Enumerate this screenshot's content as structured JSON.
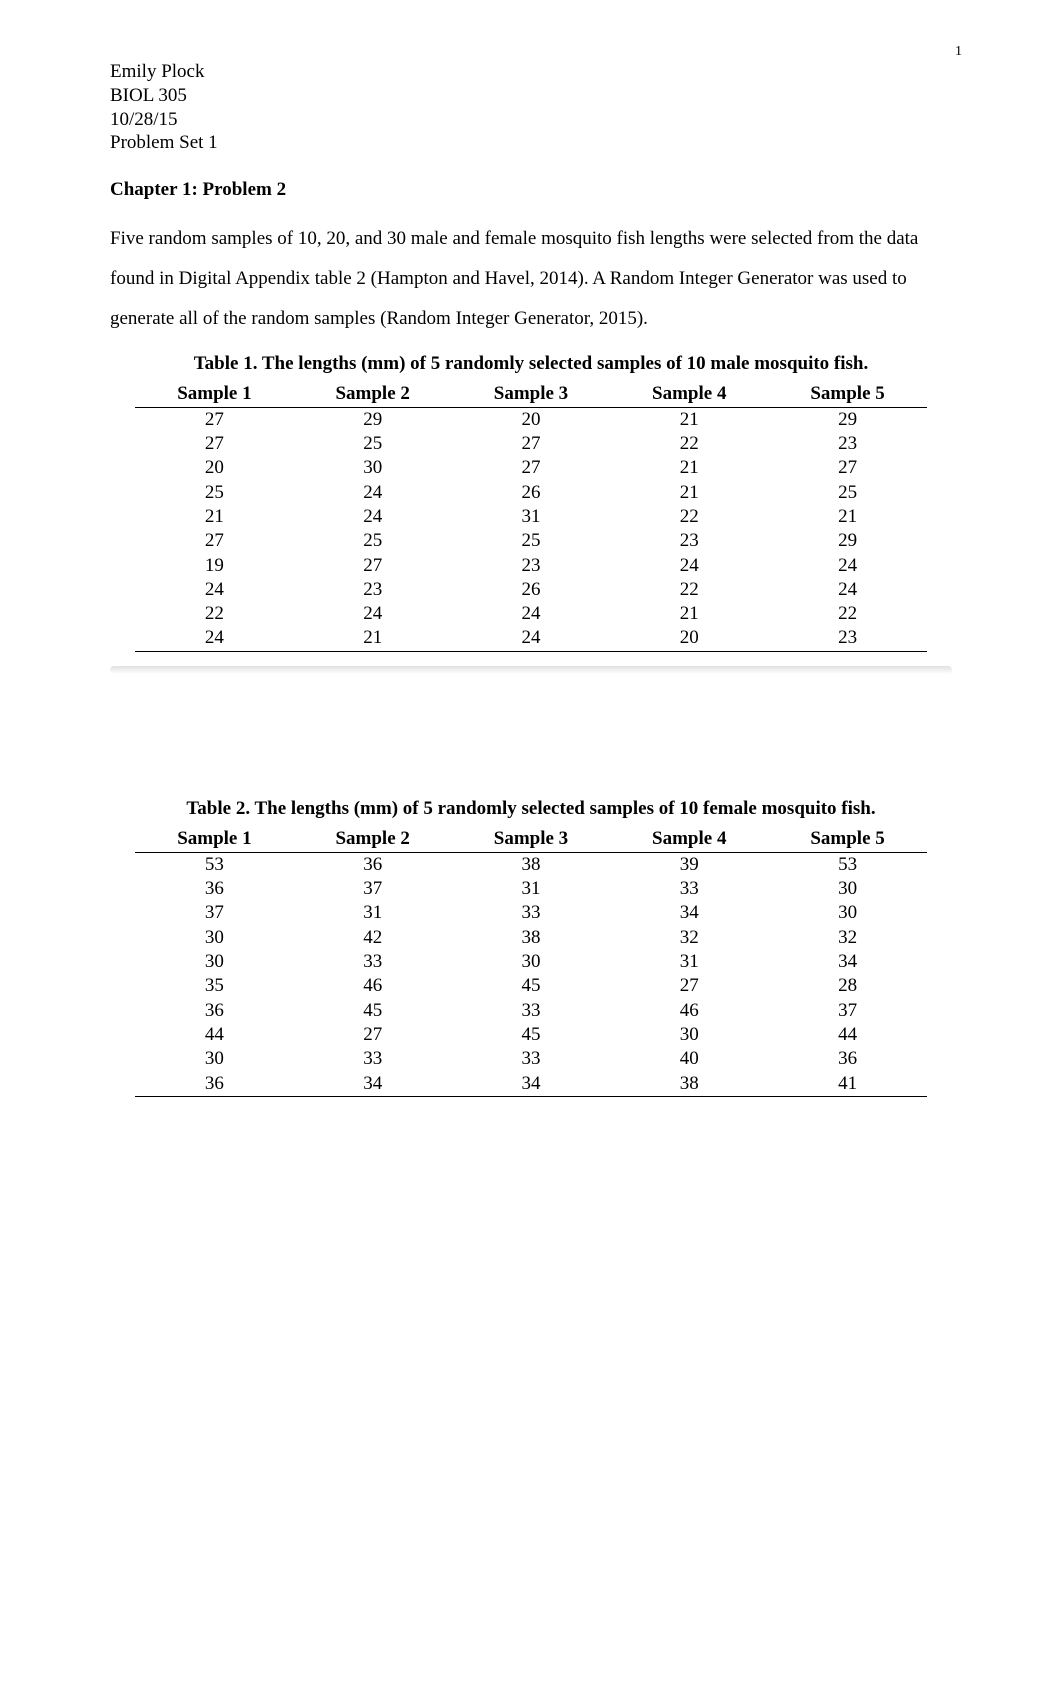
{
  "page_number": "1",
  "header": {
    "name": "Emily Plock",
    "course": "BIOL 305",
    "date": "10/28/15",
    "assignment": "Problem Set 1"
  },
  "section_heading": "Chapter 1: Problem 2",
  "body_text": "Five random samples of 10, 20, and 30 male and female mosquito fish lengths were selected from the data found in Digital Appendix table 2 (Hampton and Havel, 2014). A Random Integer Generator was used to generate all of the random samples (Random Integer Generator, 2015).",
  "table1": {
    "caption": "Table 1.  The lengths (mm) of 5 randomly selected samples of 10 male mosquito fish.",
    "columns": [
      "Sample 1",
      "Sample 2",
      "Sample 3",
      "Sample 4",
      "Sample 5"
    ],
    "rows": [
      [
        "27",
        "29",
        "20",
        "21",
        "29"
      ],
      [
        "27",
        "25",
        "27",
        "22",
        "23"
      ],
      [
        "20",
        "30",
        "27",
        "21",
        "27"
      ],
      [
        "25",
        "24",
        "26",
        "21",
        "25"
      ],
      [
        "21",
        "24",
        "31",
        "22",
        "21"
      ],
      [
        "27",
        "25",
        "25",
        "23",
        "29"
      ],
      [
        "19",
        "27",
        "23",
        "24",
        "24"
      ],
      [
        "24",
        "23",
        "26",
        "22",
        "24"
      ],
      [
        "22",
        "24",
        "24",
        "21",
        "22"
      ],
      [
        "24",
        "21",
        "24",
        "20",
        "23"
      ]
    ]
  },
  "table2": {
    "caption": "Table 2.  The lengths (mm) of 5 randomly selected samples of 10 female mosquito fish.",
    "columns": [
      "Sample 1",
      "Sample 2",
      "Sample 3",
      "Sample 4",
      "Sample 5"
    ],
    "rows": [
      [
        "53",
        "36",
        "38",
        "39",
        "53"
      ],
      [
        "36",
        "37",
        "31",
        "33",
        "30"
      ],
      [
        "37",
        "31",
        "33",
        "34",
        "30"
      ],
      [
        "30",
        "42",
        "38",
        "32",
        "32"
      ],
      [
        "30",
        "33",
        "30",
        "31",
        "34"
      ],
      [
        "35",
        "46",
        "45",
        "27",
        "28"
      ],
      [
        "36",
        "45",
        "33",
        "46",
        "37"
      ],
      [
        "44",
        "27",
        "45",
        "30",
        "44"
      ],
      [
        "30",
        "33",
        "33",
        "40",
        "36"
      ],
      [
        "36",
        "34",
        "34",
        "38",
        "41"
      ]
    ]
  }
}
